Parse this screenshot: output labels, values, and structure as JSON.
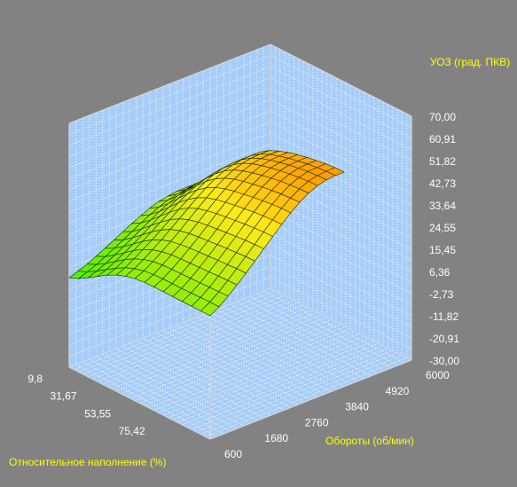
{
  "chart_data": {
    "type": "surface3d",
    "title": "",
    "z_axis": {
      "label": "УОЗ (град. ПКВ)",
      "range": [
        -30,
        70
      ],
      "ticks": [
        "70,00",
        "60,91",
        "51,82",
        "42,73",
        "33,64",
        "24,55",
        "15,45",
        "6,36",
        "-2,73",
        "-11,82",
        "-20,91",
        "-30,00"
      ]
    },
    "rpm_axis": {
      "label": "Обороты (об/мин)",
      "range": [
        600,
        6000
      ],
      "ticks": [
        "600",
        "1680",
        "2760",
        "3840",
        "4920",
        "6000"
      ]
    },
    "load_axis": {
      "label": "Относительное наполнение (%)",
      "range": [
        9.8,
        100
      ],
      "ticks": [
        "9,8",
        "31,67",
        "53,55",
        "75,42"
      ]
    },
    "grid": true,
    "rpm_samples": [
      600,
      840,
      1080,
      1320,
      1560,
      1800,
      2040,
      2280,
      2520,
      2760,
      3000,
      3240,
      3480,
      3720,
      3960,
      4200
    ],
    "load_samples": [
      9.8,
      15.8,
      21.8,
      27.9,
      33.9,
      39.9,
      45.9,
      51.9,
      58.0,
      64.0,
      70.0,
      76.0,
      82.1,
      88.1,
      94.1,
      100.0
    ],
    "z_values": [
      [
        6.7,
        8.3,
        10.6,
        13.1,
        15.6,
        17.6,
        19.1,
        20.1,
        20.5,
        20.6,
        20.6,
        20.6,
        20.6,
        20.6,
        20.6,
        20.6
      ],
      [
        8.0,
        9.6,
        11.9,
        14.5,
        17.0,
        19.2,
        20.8,
        21.8,
        22.3,
        22.5,
        22.5,
        22.5,
        22.6,
        22.7,
        22.8,
        22.8
      ],
      [
        9.4,
        11.2,
        13.6,
        16.4,
        19.1,
        21.4,
        23.1,
        24.2,
        24.8,
        25.0,
        25.1,
        25.2,
        25.3,
        25.5,
        25.6,
        25.7
      ],
      [
        11.2,
        13.0,
        15.6,
        18.5,
        21.4,
        23.8,
        25.6,
        26.8,
        27.5,
        27.8,
        28.0,
        28.2,
        28.4,
        28.6,
        28.8,
        28.9
      ],
      [
        13.0,
        15.0,
        17.7,
        20.7,
        23.7,
        26.3,
        28.3,
        29.6,
        30.3,
        30.8,
        31.1,
        31.4,
        31.7,
        31.9,
        32.2,
        32.3
      ],
      [
        14.9,
        17.0,
        19.8,
        23.0,
        26.2,
        28.9,
        31.1,
        32.5,
        33.4,
        33.9,
        34.3,
        34.7,
        35.1,
        35.4,
        35.7,
        35.8
      ],
      [
        16.9,
        19.0,
        22.0,
        25.4,
        28.7,
        31.7,
        34.0,
        35.6,
        36.6,
        37.2,
        37.7,
        38.2,
        38.6,
        39.0,
        39.2,
        39.4
      ],
      [
        18.8,
        21.1,
        24.2,
        27.8,
        31.3,
        34.5,
        37.0,
        38.7,
        39.8,
        40.6,
        41.2,
        41.7,
        42.2,
        42.6,
        42.9,
        43.0
      ],
      [
        20.6,
        23.0,
        26.3,
        30.0,
        33.8,
        37.1,
        39.8,
        41.7,
        43.0,
        43.8,
        44.5,
        45.1,
        45.7,
        46.1,
        46.4,
        46.5
      ],
      [
        22.2,
        24.7,
        28.1,
        32.1,
        36.0,
        39.5,
        42.4,
        44.5,
        45.9,
        46.9,
        47.6,
        48.3,
        48.9,
        49.4,
        49.7,
        49.8
      ],
      [
        23.5,
        26.1,
        29.7,
        33.8,
        37.9,
        41.6,
        44.6,
        46.9,
        48.4,
        49.5,
        50.3,
        51.1,
        51.7,
        52.2,
        52.5,
        52.7
      ],
      [
        24.3,
        27.1,
        30.8,
        35.1,
        39.3,
        43.2,
        46.4,
        48.8,
        50.4,
        51.6,
        52.5,
        53.3,
        54.0,
        54.5,
        54.8,
        55.0
      ],
      [
        24.8,
        27.6,
        31.5,
        35.9,
        40.3,
        44.3,
        47.6,
        50.1,
        51.9,
        53.1,
        54.1,
        54.9,
        55.6,
        56.1,
        56.5,
        56.6
      ],
      [
        24.9,
        27.8,
        31.8,
        36.3,
        40.7,
        44.8,
        48.2,
        50.8,
        52.6,
        53.9,
        54.9,
        55.8,
        56.5,
        57.1,
        57.4,
        57.6
      ],
      [
        24.9,
        27.9,
        31.8,
        36.4,
        40.8,
        44.9,
        48.4,
        51.0,
        52.8,
        54.1,
        55.2,
        56.0,
        56.8,
        57.3,
        57.7,
        57.9
      ],
      [
        24.9,
        27.9,
        31.8,
        36.4,
        40.8,
        44.9,
        48.4,
        51.0,
        52.8,
        54.2,
        55.2,
        56.1,
        56.8,
        57.4,
        57.8,
        57.9
      ]
    ]
  },
  "colors": {
    "background": "#828282",
    "pane_fill": "#a6ccf8",
    "pane_grid": "#ffffff",
    "axis_label_color": "#ffff00",
    "tick_label_color": "#ffffff",
    "surface_low": "#4cf000",
    "surface_mid": "#ffea1a",
    "surface_high": "#ff9d00"
  }
}
